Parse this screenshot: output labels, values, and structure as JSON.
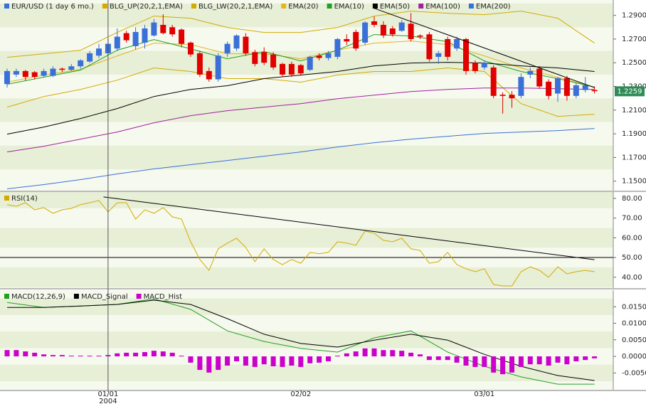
{
  "chart_data": [
    {
      "type": "candlestick",
      "title": "EUR/USD (1 day 6 mo.)",
      "title_color": "#3a70d8",
      "categories": [
        null,
        null,
        null,
        null,
        null,
        null,
        null,
        null,
        null,
        null,
        null,
        "01/01",
        null,
        null,
        null,
        null,
        null,
        null,
        null,
        null,
        null,
        null,
        null,
        null,
        null,
        null,
        null,
        null,
        null,
        null,
        null,
        null,
        "02/02",
        null,
        null,
        null,
        null,
        null,
        null,
        null,
        null,
        null,
        null,
        null,
        null,
        null,
        null,
        null,
        null,
        null,
        null,
        null,
        "03/01",
        null,
        null,
        null,
        null,
        null,
        null,
        null,
        null,
        null,
        null,
        null,
        null
      ],
      "year_label": "2004",
      "open": [
        1.232,
        1.24,
        1.243,
        1.242,
        1.239,
        1.239,
        1.245,
        1.244,
        1.247,
        1.251,
        1.256,
        1.258,
        1.262,
        1.275,
        1.264,
        1.267,
        1.273,
        1.282,
        1.28,
        1.278,
        1.267,
        1.258,
        1.243,
        1.236,
        1.258,
        1.262,
        1.272,
        1.259,
        1.259,
        1.257,
        1.249,
        1.249,
        1.248,
        1.244,
        1.256,
        1.254,
        1.255,
        1.27,
        1.276,
        1.267,
        1.285,
        1.282,
        1.279,
        1.277,
        1.283,
        1.273,
        1.274,
        1.255,
        1.27,
        1.262,
        1.27,
        1.25,
        1.246,
        1.246,
        1.223,
        1.223,
        1.222,
        1.24,
        1.245,
        1.234,
        1.224,
        1.237,
        1.222,
        1.227,
        1.227
      ],
      "high": [
        1.245,
        1.245,
        1.244,
        1.243,
        1.245,
        1.247,
        1.246,
        1.249,
        1.253,
        1.26,
        1.266,
        1.27,
        1.279,
        1.277,
        1.28,
        1.282,
        1.287,
        1.291,
        1.282,
        1.279,
        1.268,
        1.26,
        1.246,
        1.258,
        1.268,
        1.274,
        1.275,
        1.261,
        1.263,
        1.259,
        1.25,
        1.251,
        1.249,
        1.256,
        1.258,
        1.26,
        1.271,
        1.274,
        1.278,
        1.285,
        1.289,
        1.285,
        1.281,
        1.286,
        1.292,
        1.274,
        1.276,
        1.26,
        1.272,
        1.272,
        1.271,
        1.252,
        1.252,
        1.248,
        1.225,
        1.226,
        1.241,
        1.246,
        1.247,
        1.236,
        1.238,
        1.239,
        1.233,
        1.238,
        1.23
      ],
      "low": [
        1.229,
        1.238,
        1.235,
        1.236,
        1.238,
        1.238,
        1.242,
        1.243,
        1.245,
        1.25,
        1.254,
        1.256,
        1.26,
        1.267,
        1.261,
        1.262,
        1.272,
        1.274,
        1.272,
        1.263,
        1.255,
        1.238,
        1.234,
        1.234,
        1.255,
        1.26,
        1.256,
        1.247,
        1.248,
        1.244,
        1.238,
        1.238,
        1.239,
        1.243,
        1.252,
        1.252,
        1.253,
        1.265,
        1.26,
        1.265,
        1.28,
        1.271,
        1.272,
        1.276,
        1.268,
        1.27,
        1.251,
        1.249,
        1.252,
        1.26,
        1.24,
        1.241,
        1.244,
        1.22,
        1.207,
        1.212,
        1.22,
        1.237,
        1.228,
        1.219,
        1.217,
        1.218,
        1.22,
        1.225,
        1.224
      ],
      "close": [
        1.243,
        1.243,
        1.238,
        1.238,
        1.243,
        1.245,
        1.244,
        1.247,
        1.252,
        1.258,
        1.262,
        1.266,
        1.272,
        1.269,
        1.276,
        1.279,
        1.284,
        1.275,
        1.274,
        1.266,
        1.257,
        1.24,
        1.236,
        1.256,
        1.266,
        1.273,
        1.258,
        1.249,
        1.25,
        1.246,
        1.24,
        1.24,
        1.241,
        1.255,
        1.254,
        1.258,
        1.27,
        1.268,
        1.262,
        1.284,
        1.282,
        1.273,
        1.274,
        1.284,
        1.27,
        1.272,
        1.253,
        1.258,
        1.255,
        1.27,
        1.243,
        1.243,
        1.25,
        1.222,
        1.222,
        1.22,
        1.238,
        1.243,
        1.23,
        1.222,
        1.237,
        1.222,
        1.231,
        1.231,
        1.226
      ],
      "up_color": "#3a70d8",
      "down_color": "#e00000",
      "series": [
        {
          "name": "BLG_UP(20,2,1,EMA)",
          "color": "#d4aa00",
          "x": [
            0,
            4,
            8,
            12,
            16,
            20,
            24,
            28,
            32,
            36,
            40,
            44,
            48,
            52,
            56,
            60,
            64
          ],
          "values": [
            1.2546,
            1.2576,
            1.2606,
            1.2756,
            1.2894,
            1.2876,
            1.2798,
            1.2756,
            1.2756,
            1.2798,
            1.2894,
            1.2936,
            1.2918,
            1.2906,
            1.2936,
            1.2876,
            1.2666
          ]
        },
        {
          "name": "BLG_LW(20,2,1,EMA)",
          "color": "#d4aa00",
          "x": [
            0,
            4,
            8,
            12,
            16,
            20,
            24,
            28,
            32,
            36,
            40,
            44,
            48,
            52,
            56,
            60,
            64
          ],
          "values": [
            1.2125,
            1.2215,
            1.2275,
            1.2353,
            1.2456,
            1.2426,
            1.2366,
            1.2366,
            1.2336,
            1.2396,
            1.2426,
            1.2426,
            1.2456,
            1.2426,
            1.2155,
            1.2047,
            1.2065
          ]
        },
        {
          "name": "EMA(20)",
          "color": "#e6b422",
          "x": [
            0,
            4,
            8,
            12,
            16,
            20,
            24,
            28,
            32,
            36,
            40,
            44,
            48,
            52,
            56,
            60,
            64
          ],
          "values": [
            1.2336,
            1.2396,
            1.2444,
            1.2558,
            1.2666,
            1.2654,
            1.2576,
            1.2576,
            1.2534,
            1.2606,
            1.2666,
            1.2684,
            1.2654,
            1.2558,
            1.2456,
            1.2378,
            1.2294
          ]
        },
        {
          "name": "EMA(10)",
          "color": "#22a022",
          "x": [
            0,
            4,
            8,
            12,
            16,
            20,
            24,
            28,
            32,
            36,
            40,
            44,
            48,
            52,
            56,
            60,
            64
          ],
          "values": [
            1.2318,
            1.2378,
            1.2438,
            1.2606,
            1.2696,
            1.2618,
            1.2534,
            1.2594,
            1.2516,
            1.2606,
            1.2738,
            1.2726,
            1.2678,
            1.2516,
            1.2426,
            1.2366,
            1.2294
          ]
        },
        {
          "name": "EMA(50)",
          "color": "#000000",
          "x": [
            0,
            4,
            8,
            12,
            16,
            20,
            24,
            28,
            32,
            36,
            40,
            44,
            48,
            52,
            56,
            60,
            64
          ],
          "values": [
            1.1897,
            1.1957,
            1.2029,
            1.2113,
            1.2215,
            1.2275,
            1.2306,
            1.2366,
            1.2396,
            1.2426,
            1.2474,
            1.2498,
            1.2504,
            1.2498,
            1.2474,
            1.2456,
            1.2426
          ]
        },
        {
          "name": "EMA(100)",
          "color": "#a020a0",
          "x": [
            0,
            4,
            8,
            12,
            16,
            20,
            24,
            28,
            32,
            36,
            40,
            44,
            48,
            52,
            56,
            60,
            64
          ],
          "values": [
            1.1747,
            1.1795,
            1.1855,
            1.1915,
            1.1993,
            1.2053,
            1.2095,
            1.2125,
            1.2155,
            1.2197,
            1.2227,
            1.2257,
            1.2275,
            1.2287,
            1.2287,
            1.2281,
            1.2275
          ]
        },
        {
          "name": "EMA(200)",
          "color": "#3a70d8",
          "x": [
            0,
            4,
            8,
            12,
            16,
            20,
            24,
            28,
            32,
            36,
            40,
            44,
            48,
            52,
            56,
            60,
            64
          ],
          "values": [
            1.1435,
            1.1471,
            1.1513,
            1.1561,
            1.1603,
            1.1639,
            1.1675,
            1.1711,
            1.1747,
            1.1789,
            1.1825,
            1.1855,
            1.1879,
            1.1903,
            1.1915,
            1.1927,
            1.1945
          ]
        }
      ],
      "trend_line": {
        "color": "#000000",
        "x": [
          40,
          64
        ],
        "values": [
          1.296,
          1.229
        ]
      },
      "last_price": {
        "value": 1.2259,
        "label": "1.2259",
        "color": "#2e8b57"
      },
      "ylim": [
        1.142,
        1.303
      ],
      "yticks": [
        {
          "value": 1.29,
          "label": "1.2900"
        },
        {
          "value": 1.27,
          "label": "1.2700"
        },
        {
          "value": 1.25,
          "label": "1.2500"
        },
        {
          "value": 1.23,
          "label": "1.2300"
        },
        {
          "value": 1.21,
          "label": "1.2100"
        },
        {
          "value": 1.19,
          "label": "1.1900"
        },
        {
          "value": 1.17,
          "label": "1.1700"
        },
        {
          "value": 1.15,
          "label": "1.1500"
        }
      ]
    },
    {
      "type": "line",
      "series": [
        {
          "name": "RSI(14)",
          "color": "#d4aa00",
          "values": [
            76.8,
            76,
            77.8,
            74.2,
            75.3,
            72.4,
            74.2,
            74.9,
            76.8,
            77.8,
            78.9,
            73.1,
            77.8,
            77.8,
            69.5,
            74.2,
            72.4,
            75.3,
            70.6,
            69.5,
            58,
            49,
            43.5,
            54.4,
            57.3,
            59.8,
            55.1,
            47.9,
            54.4,
            49,
            46.4,
            49,
            47.1,
            52.6,
            51.9,
            52.6,
            58,
            57.3,
            56.2,
            63.4,
            62.3,
            58.7,
            58,
            59.8,
            54.4,
            53.6,
            47.1,
            47.9,
            52.6,
            46.4,
            44.3,
            42.8,
            44.3,
            36.3,
            35.6,
            35.6,
            42.8,
            45.3,
            43.5,
            40,
            45.3,
            41.7,
            42.8,
            43.5,
            42.8
          ]
        }
      ],
      "reference_line": 50,
      "trend_line": {
        "color": "#000000",
        "x": [
          10.5,
          64
        ],
        "values": [
          80.7,
          48.9
        ]
      },
      "ylim": [
        34.5,
        83.2
      ],
      "yticks": [
        {
          "value": 80,
          "label": "80.00"
        },
        {
          "value": 70,
          "label": "70.00"
        },
        {
          "value": 60,
          "label": "60.00"
        },
        {
          "value": 50,
          "label": "50.00"
        },
        {
          "value": 40,
          "label": "40.00"
        }
      ]
    },
    {
      "type": "line",
      "series": [
        {
          "name": "MACD(12,26,9)",
          "color": "#22a022",
          "x": [
            0,
            4,
            8,
            12,
            16,
            20,
            24,
            28,
            32,
            36,
            40,
            44,
            48,
            52,
            56,
            60,
            64
          ],
          "values": [
            0.0163,
            0.0148,
            0.0152,
            0.0157,
            0.0174,
            0.0142,
            0.0077,
            0.0045,
            0.0024,
            0.0013,
            0.0056,
            0.0077,
            0.0013,
            -0.003,
            -0.0062,
            -0.0084,
            -0.0084
          ]
        },
        {
          "name": "MACD_Signal",
          "color": "#000000",
          "x": [
            0,
            4,
            8,
            12,
            16,
            20,
            24,
            28,
            32,
            36,
            40,
            44,
            48,
            52,
            56,
            60,
            64
          ],
          "values": [
            0.0148,
            0.0148,
            0.0152,
            0.0157,
            0.017,
            0.0157,
            0.0114,
            0.0067,
            0.0039,
            0.0028,
            0.0049,
            0.0067,
            0.0049,
            0.0006,
            -0.003,
            -0.0058,
            -0.0073
          ]
        },
        {
          "name": "MACD_Hist",
          "color": "#cc00cc",
          "kind": "bar",
          "values": [
            0.0019,
            0.0019,
            0.0015,
            0.0011,
            0.0006,
            0.0004,
            0.0004,
            0.0002,
            0.0002,
            0.0002,
            0.0002,
            0.0004,
            0.0009,
            0.0011,
            0.0011,
            0.0013,
            0.0017,
            0.0015,
            0.0011,
            0.0002,
            -0.0019,
            -0.0041,
            -0.0049,
            -0.0041,
            -0.0028,
            -0.0015,
            -0.0028,
            -0.0032,
            -0.0024,
            -0.003,
            -0.0032,
            -0.0028,
            -0.0032,
            -0.0021,
            -0.0019,
            -0.0015,
            0.0002,
            0.0009,
            0.0015,
            0.0024,
            0.0024,
            0.0019,
            0.0019,
            0.0017,
            0.0011,
            0.0006,
            -0.0011,
            -0.0011,
            -0.0011,
            -0.0019,
            -0.0028,
            -0.0032,
            -0.0032,
            -0.0049,
            -0.0054,
            -0.0049,
            -0.0032,
            -0.0024,
            -0.0024,
            -0.0028,
            -0.0019,
            -0.0024,
            -0.0015,
            -0.0011,
            -0.0006
          ]
        }
      ],
      "ylim": [
        -0.0101,
        0.02
      ],
      "yticks": [
        {
          "value": 0.015,
          "label": "0.0150"
        },
        {
          "value": 0.01,
          "label": "0.0100"
        },
        {
          "value": 0.005,
          "label": "0.0050"
        },
        {
          "value": 0,
          "label": "0.0000"
        },
        {
          "value": -0.005,
          "label": "-0.0050"
        }
      ]
    }
  ]
}
